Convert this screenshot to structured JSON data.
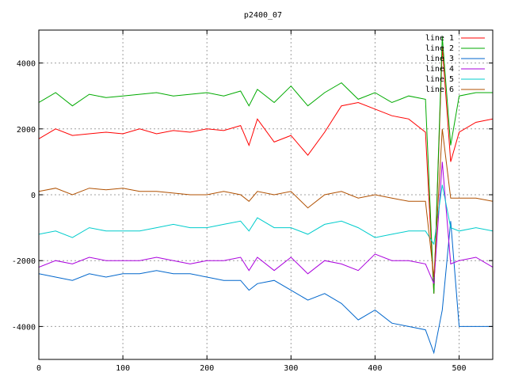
{
  "chart_data": {
    "type": "line",
    "title": "p2400_07",
    "xlabel": "",
    "ylabel": "",
    "xlim": [
      0,
      540
    ],
    "ylim": [
      -5000,
      5000
    ],
    "xticks": [
      0,
      100,
      200,
      300,
      400,
      500
    ],
    "yticks": [
      -4000,
      -2000,
      0,
      2000,
      4000
    ],
    "grid": true,
    "legend_position": "top-right",
    "x": [
      0,
      20,
      40,
      60,
      80,
      100,
      120,
      140,
      160,
      180,
      200,
      220,
      240,
      250,
      260,
      280,
      300,
      320,
      340,
      360,
      380,
      400,
      420,
      440,
      460,
      470,
      480,
      490,
      500,
      520,
      540
    ],
    "series": [
      {
        "name": "line 1",
        "color": "#ff0000",
        "values": [
          1700,
          2000,
          1800,
          1850,
          1900,
          1850,
          2000,
          1850,
          1950,
          1900,
          2000,
          1950,
          2100,
          1500,
          2300,
          1600,
          1800,
          1200,
          1900,
          2700,
          2800,
          2600,
          2400,
          2300,
          1900,
          -3000,
          4500,
          1000,
          1900,
          2200,
          2300
        ]
      },
      {
        "name": "line 2",
        "color": "#00aa00",
        "values": [
          2800,
          3100,
          2700,
          3050,
          2950,
          3000,
          3050,
          3100,
          3000,
          3050,
          3100,
          3000,
          3150,
          2700,
          3200,
          2800,
          3300,
          2700,
          3100,
          3400,
          2900,
          3100,
          2800,
          3000,
          2900,
          -3000,
          4800,
          1500,
          3000,
          3100,
          3100
        ]
      },
      {
        "name": "line 3",
        "color": "#0066cc",
        "values": [
          -2400,
          -2500,
          -2600,
          -2400,
          -2500,
          -2400,
          -2400,
          -2300,
          -2400,
          -2400,
          -2500,
          -2600,
          -2600,
          -2900,
          -2700,
          -2600,
          -2900,
          -3200,
          -3000,
          -3300,
          -3800,
          -3500,
          -3900,
          -4000,
          -4100,
          -4800,
          -3500,
          -800,
          -4000,
          -4000,
          -4000
        ]
      },
      {
        "name": "line 4",
        "color": "#aa00dd",
        "values": [
          -2200,
          -2000,
          -2100,
          -1900,
          -2000,
          -2000,
          -2000,
          -1900,
          -2000,
          -2100,
          -2000,
          -2000,
          -1900,
          -2300,
          -1900,
          -2300,
          -1900,
          -2400,
          -2000,
          -2100,
          -2300,
          -1800,
          -2000,
          -2000,
          -2100,
          -2700,
          1000,
          -2100,
          -2000,
          -1900,
          -2200
        ]
      },
      {
        "name": "line 5",
        "color": "#00cccc",
        "values": [
          -1200,
          -1100,
          -1300,
          -1000,
          -1100,
          -1100,
          -1100,
          -1000,
          -900,
          -1000,
          -1000,
          -900,
          -800,
          -1100,
          -700,
          -1000,
          -1000,
          -1200,
          -900,
          -800,
          -1000,
          -1300,
          -1200,
          -1100,
          -1100,
          -1500,
          300,
          -1000,
          -1100,
          -1000,
          -1100
        ]
      },
      {
        "name": "line 6",
        "color": "#b05000",
        "values": [
          100,
          200,
          0,
          200,
          150,
          200,
          100,
          100,
          50,
          0,
          0,
          100,
          0,
          -200,
          100,
          0,
          100,
          -400,
          0,
          100,
          -100,
          0,
          -100,
          -200,
          -200,
          -2500,
          2000,
          -100,
          -100,
          -100,
          -200
        ]
      }
    ]
  }
}
